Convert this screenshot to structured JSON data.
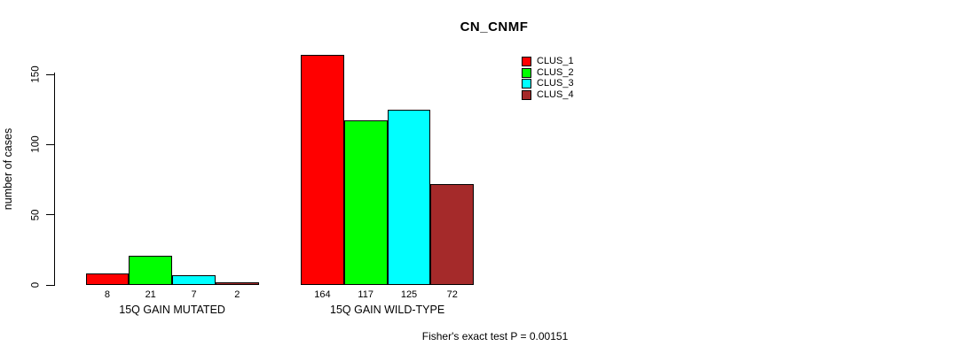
{
  "chart_data": {
    "type": "bar",
    "title": "CN_CNMF",
    "ylabel": "number of cases",
    "xlabel": "",
    "ylim": [
      0,
      170
    ],
    "yticks": [
      0,
      50,
      100,
      150
    ],
    "grid": false,
    "legend_position": "top-right",
    "categories": [
      "15Q GAIN MUTATED",
      "15Q GAIN WILD-TYPE"
    ],
    "series": [
      {
        "name": "CLUS_1",
        "color": "#ff0000",
        "values": [
          8,
          164
        ]
      },
      {
        "name": "CLUS_2",
        "color": "#00ff00",
        "values": [
          21,
          117
        ]
      },
      {
        "name": "CLUS_3",
        "color": "#00ffff",
        "values": [
          7,
          125
        ]
      },
      {
        "name": "CLUS_4",
        "color": "#a52a2a",
        "values": [
          2,
          72
        ]
      }
    ],
    "annotation": "Fisher's exact test P = 0.00151",
    "colors": {
      "background": "#ffffff",
      "axis": "#000000",
      "bar_border": "#000000"
    }
  }
}
